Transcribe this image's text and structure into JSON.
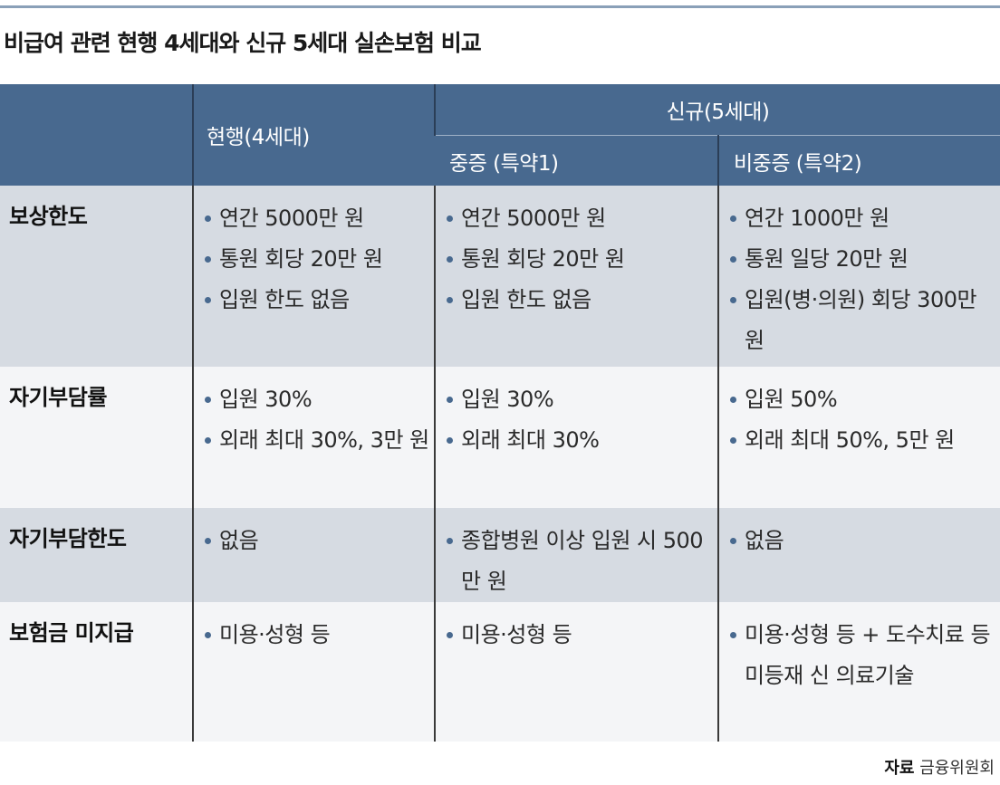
{
  "title": "비급여 관련 현행 4세대와 신규 5세대 실손보험 비교",
  "header": {
    "current": "현행(4세대)",
    "new": "신규(5세대)",
    "new_sub1": "중증 (특약1)",
    "new_sub2": "비중증 (특약2)"
  },
  "rows": [
    {
      "label": "보상한도",
      "current": [
        "연간 5000만 원",
        "통원 회당 20만 원",
        "입원 한도 없음"
      ],
      "severe": [
        "연간 5000만 원",
        "통원 회당 20만 원",
        "입원 한도 없음"
      ],
      "nonsevere": [
        "연간 1000만 원",
        "통원 일당 20만 원",
        "입원(병·의원) 회당 300만 원"
      ]
    },
    {
      "label": "자기부담률",
      "current": [
        "입원 30%",
        "외래 최대 30%, 3만 원"
      ],
      "severe": [
        "입원 30%",
        "외래 최대 30%"
      ],
      "nonsevere": [
        "입원 50%",
        "외래 최대 50%, 5만 원"
      ]
    },
    {
      "label": "자기부담한도",
      "current": [
        "없음"
      ],
      "severe": [
        "종합병원 이상 입원 시 500만 원"
      ],
      "nonsevere": [
        "없음"
      ]
    },
    {
      "label": "보험금 미지급",
      "current": [
        "미용·성형 등"
      ],
      "severe": [
        "미용·성형 등"
      ],
      "nonsevere": [
        "미용·성형 등 + 도수치료 등 미등재 신 의료기술"
      ]
    }
  ],
  "source": {
    "label": "자료",
    "name": "금융위원회"
  },
  "colors": {
    "header_bg": "#48698f",
    "shaded_row": "#d6dbe2",
    "plain_row": "#f4f5f7",
    "bullet": "#48698f"
  }
}
